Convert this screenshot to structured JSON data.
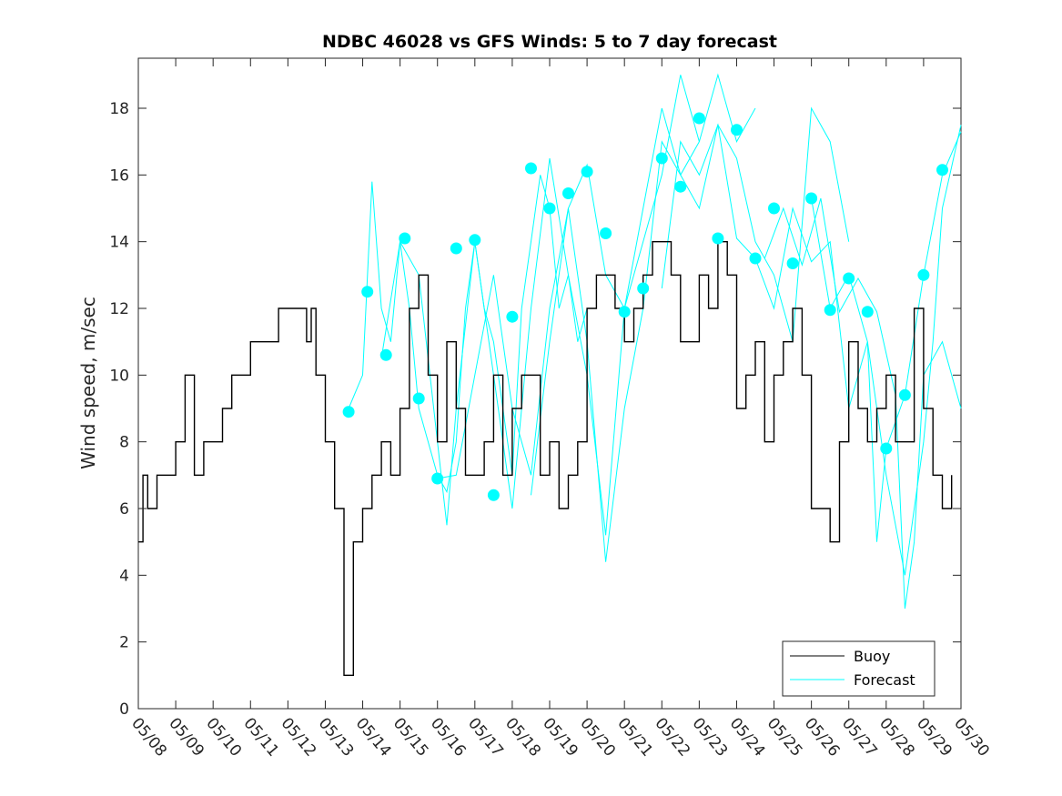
{
  "chart_data": {
    "type": "line",
    "title": "NDBC 46028 vs GFS Winds: 5 to 7 day forecast",
    "xlabel": "",
    "ylabel": "Wind speed, m/sec",
    "x_type": "date",
    "xlim": [
      "05/08",
      "05/30"
    ],
    "ylim": [
      0,
      19.5
    ],
    "x_tick_labels": [
      "05/08",
      "05/09",
      "05/10",
      "05/11",
      "05/12",
      "05/13",
      "05/14",
      "05/15",
      "05/16",
      "05/17",
      "05/18",
      "05/19",
      "05/20",
      "05/21",
      "05/22",
      "05/23",
      "05/24",
      "05/25",
      "05/26",
      "05/27",
      "05/28",
      "05/29",
      "05/30"
    ],
    "y_ticks": [
      0,
      2,
      4,
      6,
      8,
      10,
      12,
      14,
      16,
      18
    ],
    "grid": false,
    "legend_position": "bottom-right",
    "legend": [
      {
        "label": "Buoy",
        "color": "#000000"
      },
      {
        "label": "Forecast",
        "color": "#00ffff"
      }
    ],
    "colors": {
      "buoy": "#000000",
      "forecast": "#00ffff",
      "marker": "#00ffff"
    },
    "series": [
      {
        "name": "Buoy",
        "x": [
          "05/08 00:00",
          "05/08 03:00",
          "05/08 06:00",
          "05/08 12:00",
          "05/08 18:00",
          "05/09 00:00",
          "05/09 06:00",
          "05/09 12:00",
          "05/09 18:00",
          "05/10 00:00",
          "05/10 06:00",
          "05/10 12:00",
          "05/10 18:00",
          "05/11 00:00",
          "05/11 06:00",
          "05/11 12:00",
          "05/11 18:00",
          "05/12 00:00",
          "05/12 06:00",
          "05/12 12:00",
          "05/12 15:00",
          "05/12 18:00",
          "05/13 00:00",
          "05/13 06:00",
          "05/13 12:00",
          "05/13 18:00",
          "05/14 00:00",
          "05/14 06:00",
          "05/14 12:00",
          "05/14 18:00",
          "05/15 00:00",
          "05/15 06:00",
          "05/15 12:00",
          "05/15 18:00",
          "05/16 00:00",
          "05/16 06:00",
          "05/16 12:00",
          "05/16 18:00",
          "05/17 00:00",
          "05/17 06:00",
          "05/17 12:00",
          "05/17 18:00",
          "05/18 00:00",
          "05/18 06:00",
          "05/18 12:00",
          "05/18 18:00",
          "05/19 00:00",
          "05/19 06:00",
          "05/19 12:00",
          "05/19 18:00",
          "05/20 00:00",
          "05/20 06:00",
          "05/20 12:00",
          "05/20 18:00",
          "05/21 00:00",
          "05/21 06:00",
          "05/21 12:00",
          "05/21 18:00",
          "05/22 00:00",
          "05/22 06:00",
          "05/22 12:00",
          "05/22 18:00",
          "05/23 00:00",
          "05/23 06:00",
          "05/23 12:00",
          "05/23 18:00",
          "05/24 00:00",
          "05/24 06:00",
          "05/24 12:00",
          "05/24 18:00",
          "05/25 00:00",
          "05/25 06:00",
          "05/25 12:00",
          "05/25 18:00",
          "05/26 00:00",
          "05/26 06:00",
          "05/26 12:00",
          "05/26 18:00",
          "05/27 00:00",
          "05/27 06:00",
          "05/27 12:00",
          "05/27 18:00",
          "05/28 00:00",
          "05/28 06:00",
          "05/28 12:00",
          "05/28 18:00",
          "05/29 00:00",
          "05/29 06:00",
          "05/29 12:00",
          "05/29 18:00"
        ],
        "y": [
          5,
          7,
          6,
          7,
          7,
          8,
          10,
          7,
          8,
          8,
          9,
          10,
          10,
          11,
          11,
          11,
          12,
          12,
          12,
          11,
          12,
          10,
          8,
          6,
          1,
          5,
          6,
          7,
          8,
          7,
          9,
          12,
          13,
          10,
          8,
          11,
          9,
          7,
          7,
          8,
          10,
          7,
          9,
          10,
          10,
          7,
          8,
          6,
          7,
          8,
          12,
          13,
          13,
          12,
          11,
          12,
          13,
          14,
          14,
          13,
          11,
          11,
          13,
          12,
          14,
          13,
          9,
          10,
          11,
          8,
          10,
          11,
          12,
          10,
          6,
          6,
          5,
          8,
          11,
          9,
          8,
          9,
          10,
          8,
          8,
          12,
          9,
          7,
          6,
          7
        ]
      },
      {
        "name": "",
        "x": [
          "05/13 15:00",
          "05/14 00:00",
          "05/14 06:00",
          "05/14 12:00",
          "05/14 18:00",
          "05/15 00:00",
          "05/15 06:00",
          "05/15 12:00",
          "05/15 18:00",
          "05/16 00:00",
          "05/16 06:00",
          "05/16 12:00",
          "05/16 18:00",
          "05/17 00:00",
          "05/17 06:00",
          "05/17 12:00",
          "05/17 18:00",
          "05/18 00:00",
          "05/18 06:00",
          "05/18 12:00",
          "05/18 18:00",
          "05/19 00:00",
          "05/19 06:00",
          "05/19 12:00",
          "05/19 18:00",
          "05/20 00:00"
        ],
        "y": [
          9,
          10,
          15.8,
          12,
          11,
          14,
          12,
          9,
          8,
          7,
          6.5,
          8,
          12,
          14,
          12,
          11,
          9,
          7,
          12,
          14,
          16,
          15,
          12,
          13,
          11,
          12
        ]
      },
      {
        "name": "",
        "x": [
          "05/14 12:00",
          "05/15 00:00",
          "05/15 12:00",
          "05/16 00:00",
          "05/16 06:00",
          "05/16 12:00",
          "05/17 00:00",
          "05/17 12:00",
          "05/18 00:00",
          "05/18 12:00",
          "05/19 00:00",
          "05/19 12:00",
          "05/20 00:00",
          "05/20 12:00",
          "05/21 00:00",
          "05/21 12:00",
          "05/22 00:00",
          "05/22 12:00",
          "05/23 00:00"
        ],
        "y": [
          10.5,
          14,
          13,
          8,
          5.5,
          9,
          14,
          10,
          6,
          12,
          16.5,
          13,
          10,
          5.2,
          12,
          14,
          16,
          19,
          17
        ]
      },
      {
        "name": "",
        "x": [
          "05/16 00:00",
          "05/16 12:00",
          "05/17 00:00",
          "05/17 12:00",
          "05/18 00:00",
          "05/18 12:00",
          "05/19 00:00",
          "05/19 12:00",
          "05/20 00:00",
          "05/20 12:00",
          "05/21 00:00",
          "05/21 12:00",
          "05/22 00:00",
          "05/22 12:00",
          "05/23 00:00",
          "05/23 12:00",
          "05/24 00:00",
          "05/24 12:00"
        ],
        "y": [
          6.9,
          7,
          10,
          13,
          9,
          7,
          12,
          15,
          11,
          4.4,
          9,
          12,
          17,
          16,
          17,
          19,
          17,
          18
        ]
      },
      {
        "name": "",
        "x": [
          "05/18 12:00",
          "05/19 00:00",
          "05/19 12:00",
          "05/20 00:00",
          "05/20 12:00",
          "05/21 00:00",
          "05/21 12:00",
          "05/22 00:00",
          "05/22 12:00",
          "05/23 00:00",
          "05/23 12:00",
          "05/24 00:00",
          "05/24 12:00",
          "05/25 00:00",
          "05/25 12:00",
          "05/26 00:00",
          "05/26 12:00",
          "05/27 00:00"
        ],
        "y": [
          6.4,
          11,
          15,
          16.3,
          13,
          12,
          15,
          18,
          16,
          15,
          17.5,
          16.5,
          14,
          13,
          11,
          18,
          17,
          14
        ]
      },
      {
        "name": "",
        "x": [
          "05/22 00:00",
          "05/22 12:00",
          "05/23 00:00",
          "05/23 12:00",
          "05/24 00:00",
          "05/24 12:00",
          "05/25 00:00",
          "05/25 12:00",
          "05/26 00:00",
          "05/26 12:00",
          "05/27 00:00",
          "05/27 12:00",
          "05/28 00:00",
          "05/28 12:00",
          "05/29 00:00",
          "05/29 06:00",
          "05/29 12:00",
          "05/30 00:00"
        ],
        "y": [
          12.6,
          17,
          16,
          17.5,
          14.1,
          13.5,
          12,
          15,
          13.4,
          14,
          9,
          11,
          7,
          4,
          8,
          11,
          15,
          17.5
        ]
      },
      {
        "name": "",
        "x": [
          "05/24 18:00",
          "05/25 06:00",
          "05/25 18:00",
          "05/26 06:00",
          "05/26 18:00",
          "05/27 06:00",
          "05/27 18:00",
          "05/28 06:00",
          "05/28 12:00",
          "05/28 18:00",
          "05/29 00:00",
          "05/29 12:00",
          "05/30 00:00"
        ],
        "y": [
          13.5,
          15,
          13.3,
          15.3,
          11.9,
          12.9,
          11.9,
          9.4,
          3,
          5,
          10,
          11,
          9
        ]
      },
      {
        "name": "",
        "x": [
          "05/26 00:00",
          "05/26 12:00",
          "05/27 00:00",
          "05/27 12:00",
          "05/27 18:00",
          "05/28 00:00",
          "05/28 12:00",
          "05/29 00:00",
          "05/29 12:00",
          "05/30 00:00"
        ],
        "y": [
          15.3,
          12,
          13,
          11,
          5,
          7.8,
          9.4,
          13,
          16,
          17.3
        ]
      }
    ],
    "markers": {
      "x": [
        "05/13 15:00",
        "05/14 03:00",
        "05/14 15:00",
        "05/15 03:00",
        "05/15 12:00",
        "05/16 00:00",
        "05/16 12:00",
        "05/17 00:00",
        "05/17 12:00",
        "05/18 00:00",
        "05/18 12:00",
        "05/19 00:00",
        "05/19 12:00",
        "05/20 00:00",
        "05/20 12:00",
        "05/21 00:00",
        "05/21 12:00",
        "05/22 00:00",
        "05/22 12:00",
        "05/23 00:00",
        "05/23 12:00",
        "05/24 00:00",
        "05/24 12:00",
        "05/25 00:00",
        "05/25 12:00",
        "05/26 00:00",
        "05/26 12:00",
        "05/27 00:00",
        "05/27 12:00",
        "05/28 00:00",
        "05/28 12:00",
        "05/29 00:00",
        "05/29 12:00"
      ],
      "y": [
        8.9,
        12.5,
        10.6,
        14.1,
        9.3,
        6.9,
        13.8,
        14.05,
        6.4,
        11.75,
        16.2,
        15,
        15.45,
        16.1,
        14.25,
        11.9,
        12.6,
        16.5,
        15.65,
        17.7,
        14.1,
        17.35,
        13.5,
        15,
        13.35,
        15.3,
        11.95,
        12.9,
        11.9,
        7.8,
        9.4,
        13,
        16.15
      ]
    }
  }
}
